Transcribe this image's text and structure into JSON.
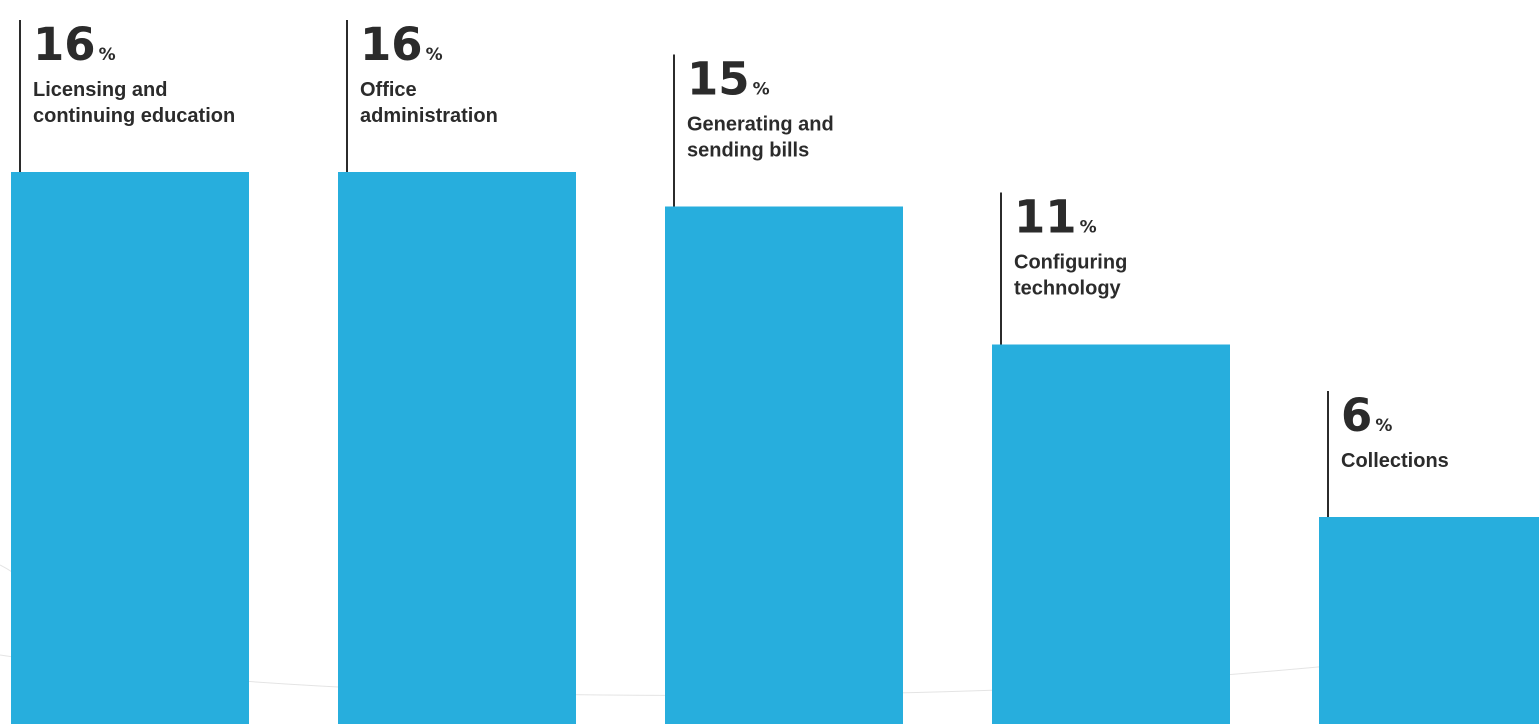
{
  "chart_data": {
    "type": "bar",
    "categories": [
      "Licensing and continuing education",
      "Office administration",
      "Generating and sending bills",
      "Configuring technology",
      "Collections"
    ],
    "label_lines": [
      [
        "Licensing and",
        "continuing education"
      ],
      [
        "Office",
        "administration"
      ],
      [
        "Generating and",
        "sending bills"
      ],
      [
        "Configuring",
        "technology"
      ],
      [
        "Collections"
      ]
    ],
    "values": [
      16,
      16,
      15,
      11,
      6
    ],
    "value_suffix": "%",
    "ylim": [
      0,
      16
    ],
    "grid": false,
    "legend": "none",
    "title": "",
    "xlabel": "",
    "ylabel": ""
  },
  "colors": {
    "bar": "#27aedd",
    "text": "#2b2b2b",
    "background": "#ffffff"
  }
}
